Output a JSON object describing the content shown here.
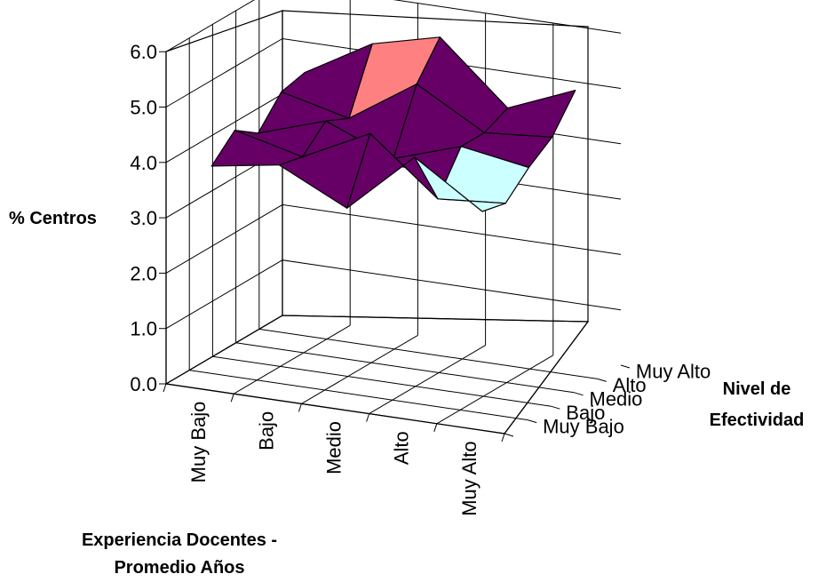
{
  "chart_data": {
    "type": "surface3d",
    "title": "",
    "zlabel": "% Centros",
    "xlabel_lines": [
      "Experiencia Docentes -",
      "Promedio Años"
    ],
    "ylabel_lines": [
      "Nivel de",
      "Efectividad"
    ],
    "x_categories": [
      "Muy Bajo",
      "Bajo",
      "Medio",
      "Alto",
      "Muy Alto"
    ],
    "y_categories": [
      "Muy Bajo",
      "Bajo",
      "Medio",
      "Alto",
      "Muy Alto"
    ],
    "z_ticks": [
      "0.0",
      "1.0",
      "2.0",
      "3.0",
      "4.0",
      "5.0",
      "6.0"
    ],
    "zlim": [
      0,
      6
    ],
    "grid": true,
    "legend": "none",
    "values": [
      [
        3.9,
        4.1,
        3.5,
        4.6,
        3.8
      ],
      [
        4.3,
        4.0,
        4.6,
        3.6,
        3.7
      ],
      [
        4.0,
        4.4,
        3.9,
        4.3,
        4.1
      ],
      [
        4.5,
        4.2,
        5.0,
        4.3,
        4.4
      ],
      [
        4.6,
        5.3,
        5.6,
        4.5,
        5.0
      ]
    ],
    "band_colors": [
      {
        "range": [
          3.0,
          4.0
        ],
        "color": "#ccffff"
      },
      {
        "range": [
          4.0,
          5.0
        ],
        "color": "#660066"
      },
      {
        "range": [
          5.0,
          6.0
        ],
        "color": "#ff8080"
      }
    ]
  }
}
